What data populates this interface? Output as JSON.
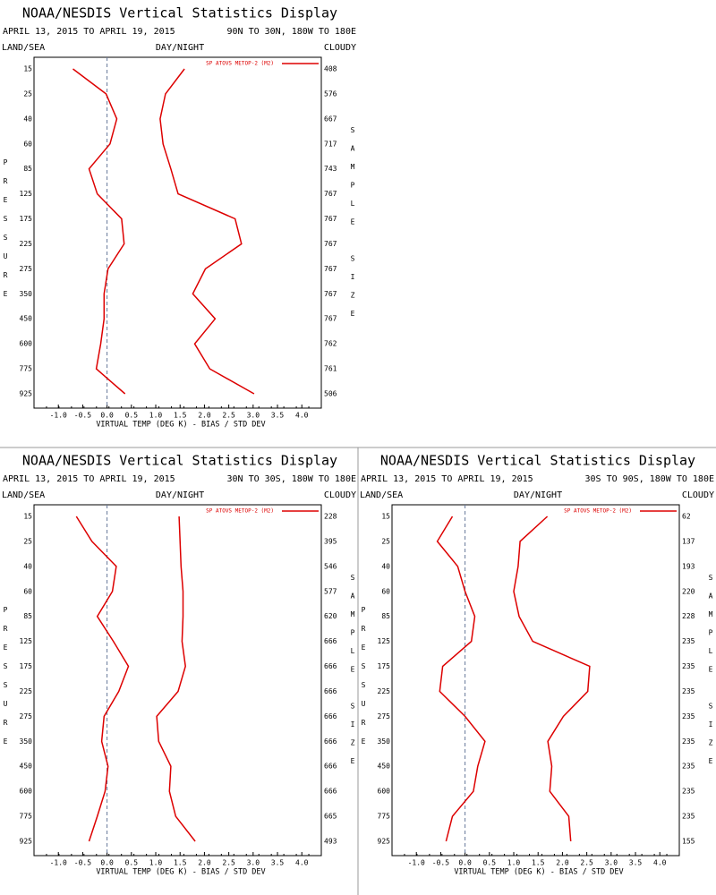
{
  "chart_data": [
    {
      "type": "line",
      "title": "NOAA/NESDIS Vertical Statistics Display",
      "subtitle": "APRIL 13, 2015 TO APRIL 19, 2015",
      "region": "90N TO 30N, 180W TO 180E",
      "left_label": "LAND/SEA",
      "center_label": "DAY/NIGHT",
      "right_label": "CLOUDY",
      "y_label": "PRESSURE",
      "y2_label": "SAMPLE SIZE",
      "x_label": "VIRTUAL TEMP (DEG K) - BIAS / STD DEV",
      "categories": [
        15,
        25,
        40,
        60,
        85,
        125,
        175,
        225,
        275,
        350,
        450,
        600,
        775,
        925
      ],
      "sample_size": [
        408,
        576,
        667,
        717,
        743,
        767,
        767,
        767,
        767,
        767,
        767,
        762,
        761,
        506
      ],
      "series": [
        {
          "name": "SP ATOVS METOP-2 (M2)",
          "color": "#dd0000",
          "values": [
            -0.7,
            -0.02,
            0.2,
            0.06,
            -0.37,
            -0.2,
            0.3,
            0.35,
            0.02,
            -0.06,
            -0.06,
            -0.13,
            -0.22,
            0.37
          ]
        },
        {
          "color": "#dd0000",
          "values": [
            1.59,
            1.2,
            1.09,
            1.15,
            1.31,
            1.46,
            2.63,
            2.76,
            2.02,
            1.76,
            2.22,
            1.8,
            2.11,
            3.02
          ]
        }
      ],
      "xlim": [
        -1.5,
        4.4
      ],
      "xticks": [
        {
          "value": -1,
          "label": "-1.0"
        },
        {
          "value": -0.5,
          "label": "-0.5"
        },
        {
          "value": 0,
          "label": "0.0"
        },
        {
          "value": 0.5,
          "label": "0.5"
        },
        {
          "value": 1,
          "label": "1.0"
        },
        {
          "value": 1.5,
          "label": "1.5"
        },
        {
          "value": 2,
          "label": "2.0"
        },
        {
          "value": 2.5,
          "label": "2.5"
        },
        {
          "value": 3,
          "label": "3.0"
        },
        {
          "value": 3.5,
          "label": "3.5"
        },
        {
          "value": 4,
          "label": "4.0"
        }
      ],
      "zero_line": true,
      "legend": "top-right"
    },
    {
      "type": "line",
      "title": "NOAA/NESDIS Vertical Statistics Display",
      "subtitle": "APRIL 13, 2015 TO APRIL 19, 2015",
      "region": "30N TO 30S, 180W TO 180E",
      "left_label": "LAND/SEA",
      "center_label": "DAY/NIGHT",
      "right_label": "CLOUDY",
      "y_label": "PRESSURE",
      "y2_label": "SAMPLE SIZE",
      "x_label": "VIRTUAL TEMP (DEG K) - BIAS / STD DEV",
      "categories": [
        15,
        25,
        40,
        60,
        85,
        125,
        175,
        225,
        275,
        350,
        450,
        600,
        775,
        925
      ],
      "sample_size": [
        228,
        395,
        546,
        577,
        620,
        666,
        666,
        666,
        666,
        666,
        666,
        666,
        665,
        493
      ],
      "series": [
        {
          "name": "SP ATOVS METOP-2 (M2)",
          "color": "#dd0000",
          "values": [
            -0.63,
            -0.31,
            0.19,
            0.11,
            -0.2,
            0.13,
            0.44,
            0.24,
            -0.06,
            -0.11,
            0.02,
            -0.04,
            -0.2,
            -0.37
          ]
        },
        {
          "color": "#dd0000",
          "values": [
            1.48,
            1.5,
            1.52,
            1.56,
            1.56,
            1.54,
            1.61,
            1.46,
            1.02,
            1.06,
            1.31,
            1.28,
            1.41,
            1.81
          ]
        }
      ],
      "xlim": [
        -1.5,
        4.4
      ],
      "xticks": [
        {
          "value": -1,
          "label": "-1.0"
        },
        {
          "value": -0.5,
          "label": "-0.5"
        },
        {
          "value": 0,
          "label": "0.0"
        },
        {
          "value": 0.5,
          "label": "0.5"
        },
        {
          "value": 1,
          "label": "1.0"
        },
        {
          "value": 1.5,
          "label": "1.5"
        },
        {
          "value": 2,
          "label": "2.0"
        },
        {
          "value": 2.5,
          "label": "2.5"
        },
        {
          "value": 3,
          "label": "3.0"
        },
        {
          "value": 3.5,
          "label": "3.5"
        },
        {
          "value": 4,
          "label": "4.0"
        }
      ],
      "zero_line": true,
      "legend": "top-right"
    },
    {
      "type": "line",
      "title": "NOAA/NESDIS Vertical Statistics Display",
      "subtitle": "APRIL 13, 2015 TO APRIL 19, 2015",
      "region": "30S TO 90S, 180W TO 180E",
      "left_label": "LAND/SEA",
      "center_label": "DAY/NIGHT",
      "right_label": "CLOUDY",
      "y_label": "PRESSURE",
      "y2_label": "SAMPLE SIZE",
      "x_label": "VIRTUAL TEMP (DEG K) - BIAS / STD DEV",
      "categories": [
        15,
        25,
        40,
        60,
        85,
        125,
        175,
        225,
        275,
        350,
        450,
        600,
        775,
        925
      ],
      "sample_size": [
        62,
        137,
        193,
        220,
        228,
        235,
        235,
        235,
        235,
        235,
        235,
        235,
        235,
        155
      ],
      "series": [
        {
          "name": "SP ATOVS METOP-2 (M2)",
          "color": "#dd0000",
          "values": [
            -0.26,
            -0.57,
            -0.15,
            0,
            0.2,
            0.13,
            -0.46,
            -0.52,
            0,
            0.41,
            0.26,
            0.17,
            -0.26,
            -0.39
          ]
        },
        {
          "color": "#dd0000",
          "values": [
            1.69,
            1.13,
            1.09,
            1.0,
            1.11,
            1.39,
            2.56,
            2.52,
            2.02,
            1.7,
            1.78,
            1.74,
            2.13,
            2.17
          ]
        }
      ],
      "xlim": [
        -1.5,
        4.4
      ],
      "xticks": [
        {
          "value": -1,
          "label": "-1.0"
        },
        {
          "value": -0.5,
          "label": "-0.5"
        },
        {
          "value": 0,
          "label": "0.0"
        },
        {
          "value": 0.5,
          "label": "0.5"
        },
        {
          "value": 1,
          "label": "1.0"
        },
        {
          "value": 1.5,
          "label": "1.5"
        },
        {
          "value": 2,
          "label": "2.0"
        },
        {
          "value": 2.5,
          "label": "2.5"
        },
        {
          "value": 3,
          "label": "3.0"
        },
        {
          "value": 3.5,
          "label": "3.5"
        },
        {
          "value": 4,
          "label": "4.0"
        }
      ],
      "zero_line": true,
      "legend": "top-right"
    }
  ]
}
